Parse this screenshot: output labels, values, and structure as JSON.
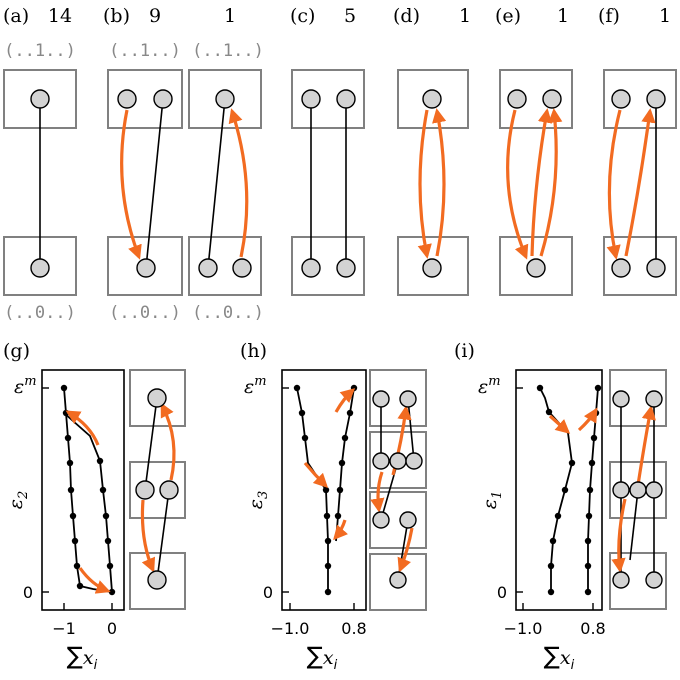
{
  "colors": {
    "arrow": "#f26b21",
    "box": "#808080",
    "node_fill": "#d3d3d3",
    "edge": "#000000",
    "state_text": "#888888"
  },
  "panels_top": [
    {
      "label": "(a)",
      "count": "14"
    },
    {
      "label": "(b)",
      "count": "9"
    },
    {
      "label": "",
      "count": "1"
    },
    {
      "label": "(c)",
      "count": "5"
    },
    {
      "label": "(d)",
      "count": "1"
    },
    {
      "label": "(e)",
      "count": "1"
    },
    {
      "label": "(f)",
      "count": "1"
    }
  ],
  "state_top": [
    "(..1..)",
    "(..1..)",
    "(..1..)"
  ],
  "state_bottom": [
    "(..0..)",
    "(..0..)",
    "(..0..)"
  ],
  "panels_bottom": [
    {
      "label": "(g)",
      "ylabel": "ε",
      "ylabel_sub": "2",
      "ytick_top_base": "ε",
      "ytick_top_sup": "m",
      "ytick_bottom": "0",
      "xticks": [
        "−1",
        "0"
      ],
      "xlabel_sum": "∑",
      "xlabel_var": "x",
      "xlabel_sub": "i"
    },
    {
      "label": "(h)",
      "ylabel": "ε",
      "ylabel_sub": "3",
      "ytick_top_base": "ε",
      "ytick_top_sup": "m",
      "ytick_bottom": "0",
      "xticks": [
        "−1.0",
        "0.8"
      ],
      "xlabel_sum": "∑",
      "xlabel_var": "x",
      "xlabel_sub": "i"
    },
    {
      "label": "(i)",
      "ylabel": "ε",
      "ylabel_sub": "1",
      "ytick_top_base": "ε",
      "ytick_top_sup": "m",
      "ytick_bottom": "0",
      "xticks": [
        "−1.0",
        "0.8"
      ],
      "xlabel_sum": "∑",
      "xlabel_var": "x",
      "xlabel_sub": "i"
    }
  ]
}
